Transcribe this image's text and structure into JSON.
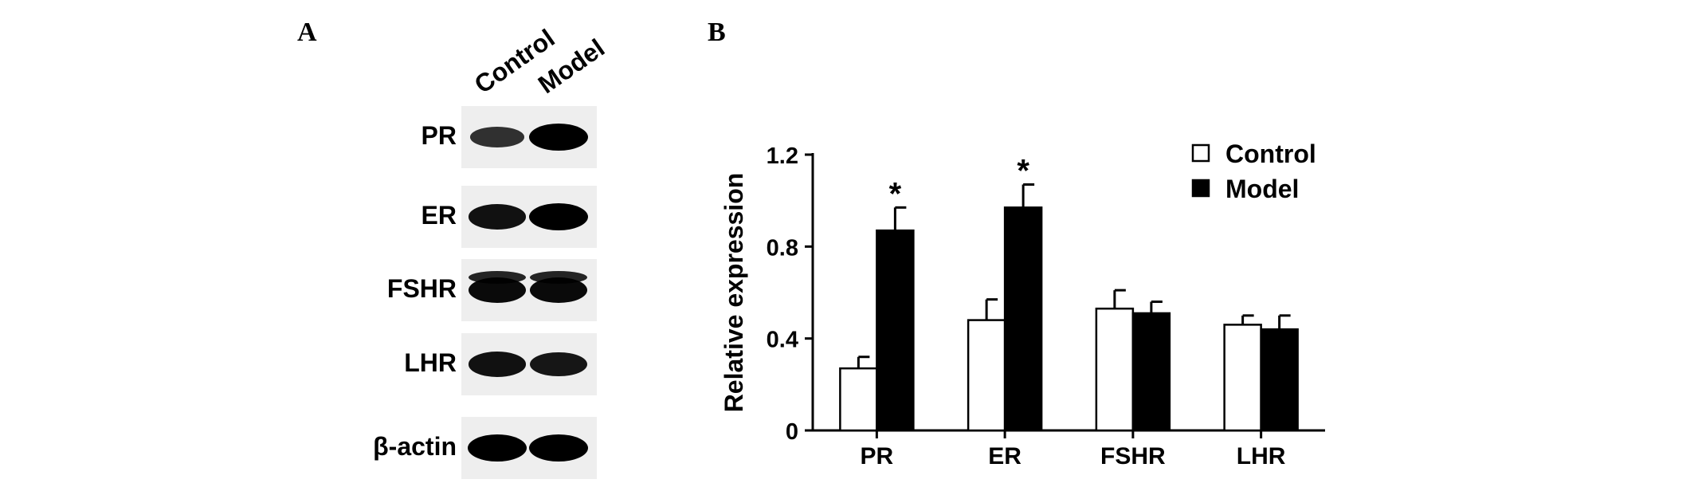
{
  "panels": {
    "a": "A",
    "b": "B"
  },
  "blot": {
    "lanes": [
      "Control",
      "Model"
    ],
    "rows": [
      {
        "label": "PR",
        "intensity": [
          0.55,
          1.0
        ]
      },
      {
        "label": "ER",
        "intensity": [
          0.85,
          1.0
        ]
      },
      {
        "label": "FSHR",
        "intensity": [
          0.9,
          0.9
        ]
      },
      {
        "label": "LHR",
        "intensity": [
          0.85,
          0.8
        ]
      },
      {
        "label": "β-actin",
        "intensity": [
          1.0,
          1.0
        ]
      }
    ]
  },
  "chart_data": {
    "type": "bar",
    "categories": [
      "PR",
      "ER",
      "FSHR",
      "LHR"
    ],
    "series": [
      {
        "name": "Control",
        "values": [
          0.27,
          0.48,
          0.53,
          0.46
        ],
        "errors": [
          0.05,
          0.09,
          0.08,
          0.04
        ],
        "color": "#ffffff"
      },
      {
        "name": "Model",
        "values": [
          0.87,
          0.97,
          0.51,
          0.44
        ],
        "errors": [
          0.1,
          0.1,
          0.05,
          0.06
        ],
        "color": "#000000"
      }
    ],
    "ylabel": "Relative expression",
    "xlabel": "",
    "ylim": [
      0,
      1.2
    ],
    "yticks": [
      0,
      0.4,
      0.8,
      1.2
    ],
    "ytick_labels": [
      "0",
      "0.4",
      "0.8",
      "1.2"
    ],
    "annotations": [
      {
        "category": "PR",
        "series": "Model",
        "text": "*"
      },
      {
        "category": "ER",
        "series": "Model",
        "text": "*"
      }
    ],
    "legend_position": "top-right",
    "grid": false
  }
}
